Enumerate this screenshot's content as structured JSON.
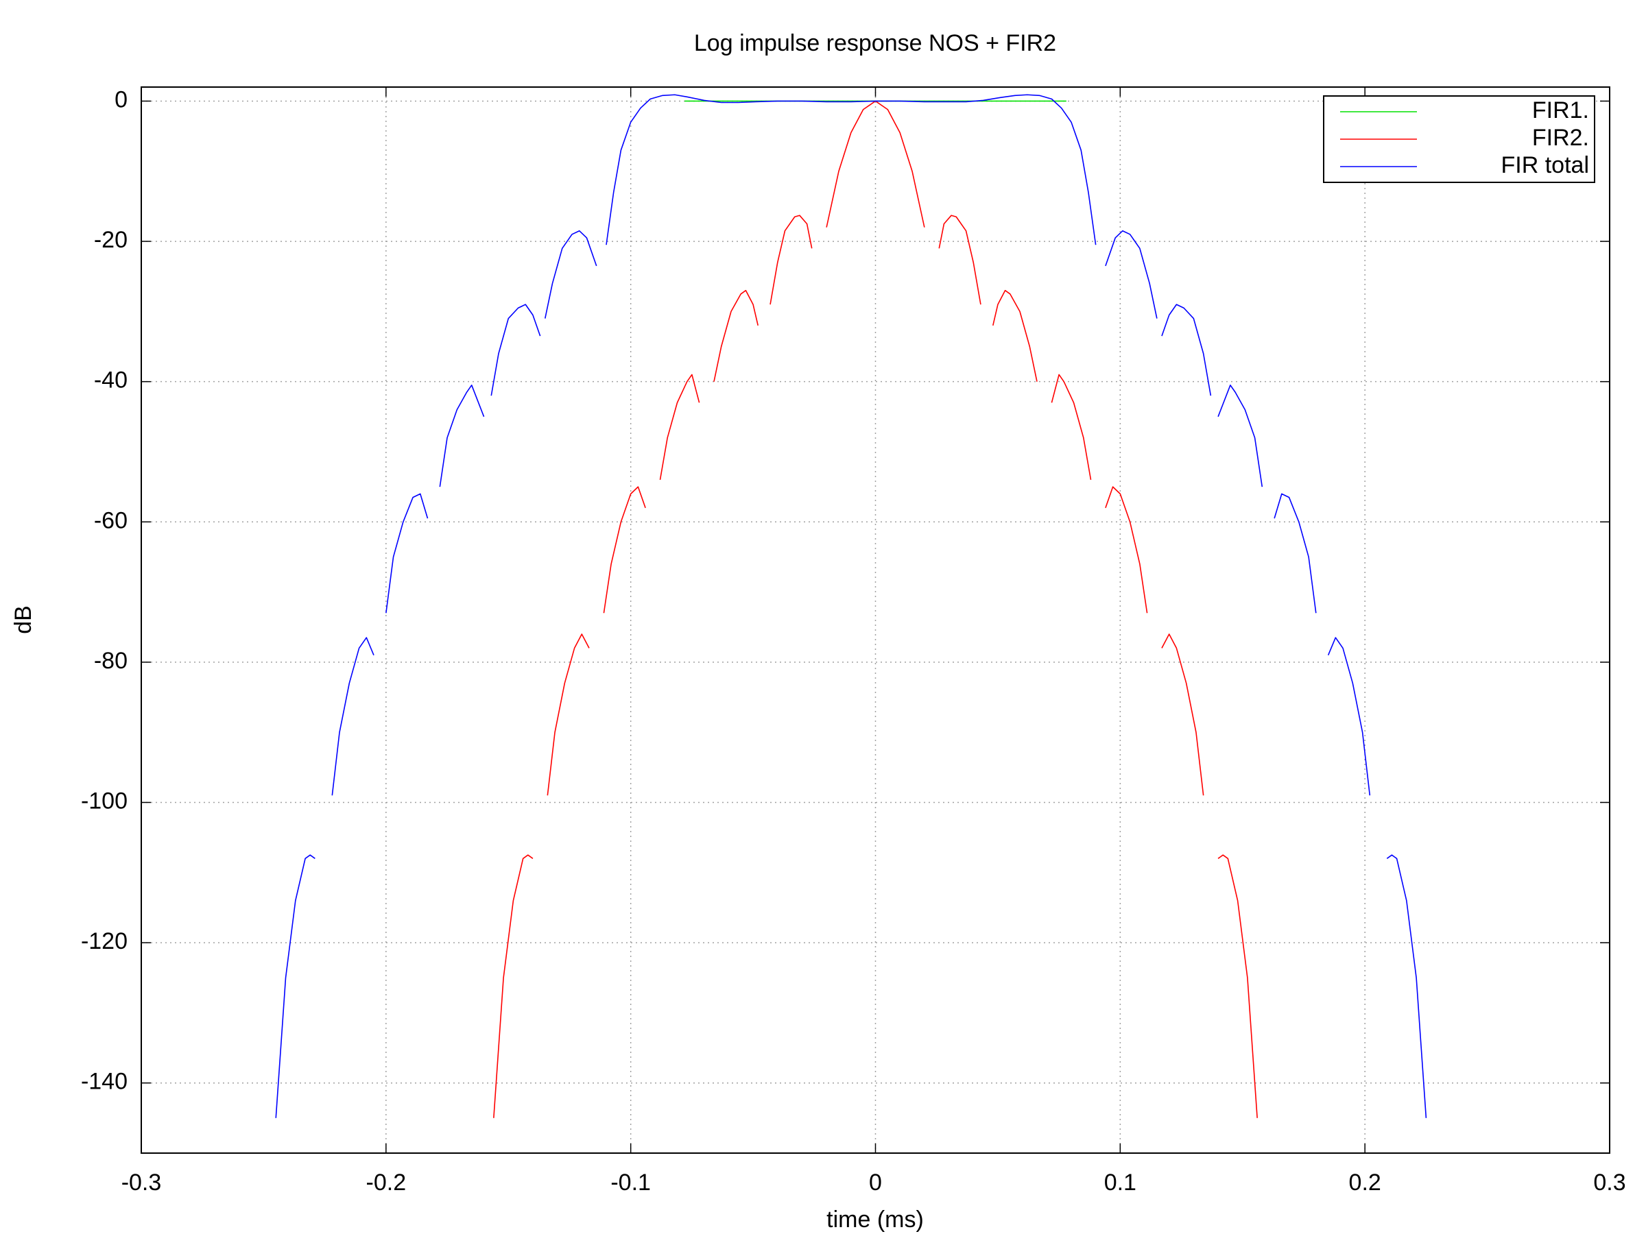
{
  "chart_data": {
    "type": "line",
    "title": "Log impulse response NOS + FIR2",
    "x_label": "time (ms)",
    "y_label": "dB",
    "xlim": [
      -0.3,
      0.3
    ],
    "xticks": [
      -0.3,
      -0.2,
      -0.1,
      0,
      0.1,
      0.2,
      0.3
    ],
    "ylim": [
      -150,
      2
    ],
    "yticks": [
      0,
      -20,
      -40,
      -60,
      -80,
      -100,
      -120,
      -140
    ],
    "grid": true,
    "legend": "top-right",
    "series": [
      {
        "name": "FIR1.",
        "color": "#00e000",
        "x": [
          -0.078,
          0.078
        ],
        "values": [
          0,
          0
        ]
      },
      {
        "name": "FIR2.",
        "color": "#ff0000",
        "x": [
          -0.156,
          -0.152,
          -0.148,
          -0.144,
          -0.142,
          -0.14,
          null,
          -0.134,
          -0.131,
          -0.127,
          -0.123,
          -0.12,
          -0.117,
          null,
          -0.111,
          -0.108,
          -0.104,
          -0.1,
          -0.097,
          -0.094,
          null,
          -0.088,
          -0.085,
          -0.081,
          -0.077,
          -0.075,
          -0.072,
          null,
          -0.066,
          -0.063,
          -0.059,
          -0.055,
          -0.053,
          -0.05,
          -0.048,
          null,
          -0.043,
          -0.04,
          -0.037,
          -0.033,
          -0.031,
          -0.028,
          -0.026,
          null,
          -0.02,
          -0.015,
          -0.01,
          -0.005,
          0,
          0.005,
          0.01,
          0.015,
          0.02,
          null,
          0.026,
          0.028,
          0.031,
          0.033,
          0.037,
          0.04,
          0.043,
          null,
          0.048,
          0.05,
          0.053,
          0.055,
          0.059,
          0.063,
          0.066,
          null,
          0.072,
          0.075,
          0.077,
          0.081,
          0.085,
          0.088,
          null,
          0.094,
          0.097,
          0.1,
          0.104,
          0.108,
          0.111,
          null,
          0.117,
          0.12,
          0.123,
          0.127,
          0.131,
          0.134,
          null,
          0.14,
          0.142,
          0.144,
          0.148,
          0.152,
          0.156
        ],
        "values": [
          -145,
          -125,
          -114,
          -108,
          -107.5,
          -108,
          null,
          -99,
          -90,
          -83,
          -78,
          -76,
          -78,
          null,
          -73,
          -66,
          -60,
          -56,
          -55,
          -58,
          null,
          -54,
          -48,
          -43,
          -40,
          -39,
          -43,
          null,
          -40,
          -35,
          -30,
          -27.5,
          -27,
          -29,
          -32,
          null,
          -29,
          -23,
          -18.5,
          -16.5,
          -16.3,
          -17.5,
          -21,
          null,
          -18,
          -10,
          -4.5,
          -1.2,
          0,
          -1.2,
          -4.5,
          -10,
          -18,
          null,
          -21,
          -17.5,
          -16.3,
          -16.5,
          -18.5,
          -23,
          -29,
          null,
          -32,
          -29,
          -27,
          -27.5,
          -30,
          -35,
          -40,
          null,
          -43,
          -39,
          -40,
          -43,
          -48,
          -54,
          null,
          -58,
          -55,
          -56,
          -60,
          -66,
          -73,
          null,
          -78,
          -76,
          -78,
          -83,
          -90,
          -99,
          null,
          -108,
          -107.5,
          -108,
          -114,
          -125,
          -145
        ]
      },
      {
        "name": "FIR total",
        "color": "#0000ff",
        "x": [
          -0.245,
          -0.241,
          -0.237,
          -0.233,
          -0.231,
          -0.229,
          null,
          -0.222,
          -0.219,
          -0.215,
          -0.211,
          -0.208,
          -0.205,
          null,
          -0.2,
          -0.197,
          -0.193,
          -0.189,
          -0.186,
          -0.183,
          null,
          -0.178,
          -0.175,
          -0.171,
          -0.167,
          -0.165,
          -0.16,
          null,
          -0.157,
          -0.154,
          -0.15,
          -0.146,
          -0.143,
          -0.14,
          -0.137,
          null,
          -0.135,
          -0.132,
          -0.128,
          -0.124,
          -0.121,
          -0.118,
          -0.114,
          null,
          -0.11,
          -0.107,
          -0.104,
          -0.1,
          -0.096,
          -0.092,
          -0.087,
          -0.082,
          -0.077,
          -0.07,
          -0.063,
          -0.056,
          -0.049,
          -0.04,
          -0.03,
          -0.02,
          -0.01,
          0,
          0.01,
          0.02,
          0.03,
          0.037,
          0.044,
          0.051,
          0.057,
          0.062,
          0.067,
          0.072,
          0.076,
          0.08,
          0.084,
          0.087,
          0.09,
          null,
          0.094,
          0.098,
          0.101,
          0.104,
          0.108,
          0.112,
          0.115,
          null,
          0.117,
          0.12,
          0.123,
          0.126,
          0.13,
          0.134,
          0.137,
          null,
          0.14,
          0.145,
          0.147,
          0.151,
          0.155,
          0.158,
          null,
          0.163,
          0.166,
          0.169,
          0.173,
          0.177,
          0.18,
          null,
          0.185,
          0.188,
          0.191,
          0.195,
          0.199,
          0.202,
          null,
          0.209,
          0.211,
          0.213,
          0.217,
          0.221,
          0.225
        ],
        "values": [
          -145,
          -125,
          -114,
          -108,
          -107.5,
          -108,
          null,
          -99,
          -90,
          -83,
          -78,
          -76.5,
          -79,
          null,
          -73,
          -65,
          -60,
          -56.5,
          -56,
          -59.5,
          null,
          -55,
          -48,
          -44,
          -41.5,
          -40.5,
          -45,
          null,
          -42,
          -36,
          -31,
          -29.5,
          -29,
          -30.5,
          -33.5,
          null,
          -31,
          -26,
          -21,
          -19,
          -18.5,
          -19.5,
          -23.5,
          null,
          -20.5,
          -13,
          -7,
          -3,
          -1,
          0.3,
          0.8,
          0.9,
          0.6,
          0.1,
          -0.2,
          -0.2,
          -0.1,
          0,
          0,
          -0.1,
          -0.1,
          0,
          0,
          -0.1,
          -0.1,
          -0.1,
          0.1,
          0.5,
          0.8,
          0.9,
          0.8,
          0.3,
          -1,
          -3,
          -7,
          -13,
          -20.5,
          null,
          -23.5,
          -19.5,
          -18.5,
          -19,
          -21,
          -26,
          -31,
          null,
          -33.5,
          -30.5,
          -29,
          -29.5,
          -31,
          -36,
          -42,
          null,
          -45,
          -40.5,
          -41.5,
          -44,
          -48,
          -55,
          null,
          -59.5,
          -56,
          -56.5,
          -60,
          -65,
          -73,
          null,
          -79,
          -76.5,
          -78,
          -83,
          -90,
          -99,
          null,
          -108,
          -107.5,
          -108,
          -114,
          -125,
          -145
        ]
      }
    ]
  }
}
